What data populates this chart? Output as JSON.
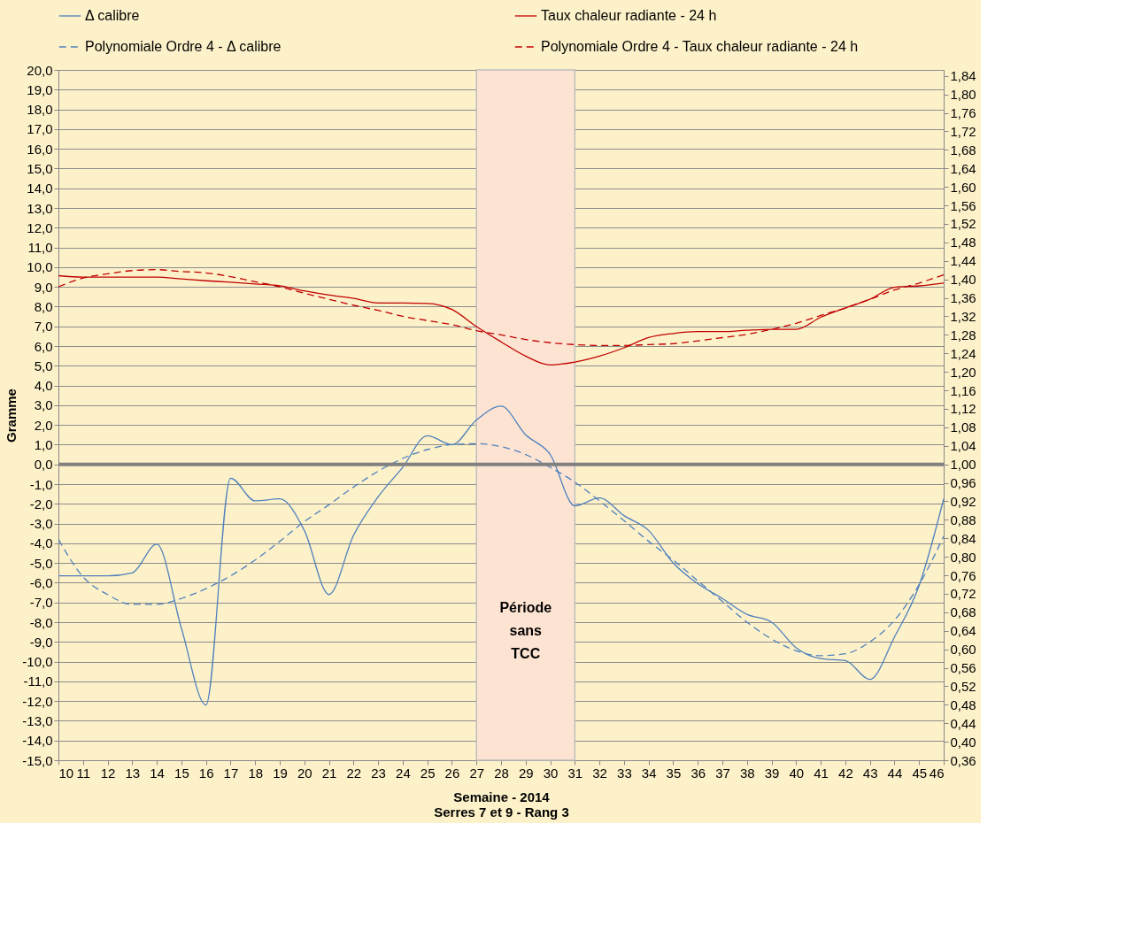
{
  "chart_data": {
    "type": "line",
    "xlabel": "Semaine - 2014",
    "ylabel": "Gramme",
    "annotations": [
      "Serres 7 et 9 - Rang 3"
    ],
    "x": [
      10,
      11,
      12,
      13,
      14,
      15,
      16,
      17,
      18,
      19,
      20,
      21,
      22,
      23,
      24,
      25,
      26,
      27,
      28,
      29,
      30,
      31,
      32,
      33,
      34,
      35,
      36,
      37,
      38,
      39,
      40,
      41,
      42,
      43,
      44,
      45,
      46
    ],
    "xlim": [
      10,
      46
    ],
    "xticks": [
      10,
      11,
      12,
      13,
      14,
      15,
      16,
      17,
      18,
      19,
      20,
      21,
      22,
      23,
      24,
      25,
      26,
      27,
      28,
      29,
      30,
      31,
      32,
      33,
      34,
      35,
      36,
      37,
      38,
      39,
      40,
      41,
      42,
      43,
      44,
      45,
      46
    ],
    "ylim": [
      -15,
      20
    ],
    "yticks": [
      {
        "value": -15,
        "label": "-15,0"
      },
      {
        "value": -14,
        "label": "-14,0"
      },
      {
        "value": -13,
        "label": "-13,0"
      },
      {
        "value": -12,
        "label": "-12,0"
      },
      {
        "value": -11,
        "label": "-11,0"
      },
      {
        "value": -10,
        "label": "-10,0"
      },
      {
        "value": -9,
        "label": "-9,0"
      },
      {
        "value": -8,
        "label": "-8,0"
      },
      {
        "value": -7,
        "label": "-7,0"
      },
      {
        "value": -6,
        "label": "-6,0"
      },
      {
        "value": -5,
        "label": "-5,0"
      },
      {
        "value": -4,
        "label": "-4,0"
      },
      {
        "value": -3,
        "label": "-3,0"
      },
      {
        "value": -2,
        "label": "-2,0"
      },
      {
        "value": -1,
        "label": "-1,0"
      },
      {
        "value": 0,
        "label": "0,0"
      },
      {
        "value": 1,
        "label": "1,0"
      },
      {
        "value": 2,
        "label": "2,0"
      },
      {
        "value": 3,
        "label": "3,0"
      },
      {
        "value": 4,
        "label": "4,0"
      },
      {
        "value": 5,
        "label": "5,0"
      },
      {
        "value": 6,
        "label": "6,0"
      },
      {
        "value": 7,
        "label": "7,0"
      },
      {
        "value": 8,
        "label": "8,0"
      },
      {
        "value": 9,
        "label": "9,0"
      },
      {
        "value": 10,
        "label": "10,0"
      },
      {
        "value": 11,
        "label": "11,0"
      },
      {
        "value": 12,
        "label": "12,0"
      },
      {
        "value": 13,
        "label": "13,0"
      },
      {
        "value": 14,
        "label": "14,0"
      },
      {
        "value": 15,
        "label": "15,0"
      },
      {
        "value": 16,
        "label": "16,0"
      },
      {
        "value": 17,
        "label": "17,0"
      },
      {
        "value": 18,
        "label": "18,0"
      },
      {
        "value": 19,
        "label": "19,0"
      },
      {
        "value": 20,
        "label": "20,0"
      }
    ],
    "y2lim": [
      0.36,
      1.853
    ],
    "y2ticks": [
      {
        "value": 0.36,
        "label": "0,36"
      },
      {
        "value": 0.4,
        "label": "0,40"
      },
      {
        "value": 0.44,
        "label": "0,44"
      },
      {
        "value": 0.48,
        "label": "0,48"
      },
      {
        "value": 0.52,
        "label": "0,52"
      },
      {
        "value": 0.56,
        "label": "0,56"
      },
      {
        "value": 0.6,
        "label": "0,60"
      },
      {
        "value": 0.64,
        "label": "0,64"
      },
      {
        "value": 0.68,
        "label": "0,68"
      },
      {
        "value": 0.72,
        "label": "0,72"
      },
      {
        "value": 0.76,
        "label": "0,76"
      },
      {
        "value": 0.8,
        "label": "0,80"
      },
      {
        "value": 0.84,
        "label": "0,84"
      },
      {
        "value": 0.88,
        "label": "0,88"
      },
      {
        "value": 0.92,
        "label": "0,92"
      },
      {
        "value": 0.96,
        "label": "0,96"
      },
      {
        "value": 1,
        "label": "1,00"
      },
      {
        "value": 1.04,
        "label": "1,04"
      },
      {
        "value": 1.08,
        "label": "1,08"
      },
      {
        "value": 1.12,
        "label": "1,12"
      },
      {
        "value": 1.16,
        "label": "1,16"
      },
      {
        "value": 1.2,
        "label": "1,20"
      },
      {
        "value": 1.24,
        "label": "1,24"
      },
      {
        "value": 1.28,
        "label": "1,28"
      },
      {
        "value": 1.32,
        "label": "1,32"
      },
      {
        "value": 1.36,
        "label": "1,36"
      },
      {
        "value": 1.4,
        "label": "1,40"
      },
      {
        "value": 1.44,
        "label": "1,44"
      },
      {
        "value": 1.48,
        "label": "1,48"
      },
      {
        "value": 1.52,
        "label": "1,52"
      },
      {
        "value": 1.56,
        "label": "1,56"
      },
      {
        "value": 1.6,
        "label": "1,60"
      },
      {
        "value": 1.64,
        "label": "1,64"
      },
      {
        "value": 1.68,
        "label": "1,68"
      },
      {
        "value": 1.72,
        "label": "1,72"
      },
      {
        "value": 1.76,
        "label": "1,76"
      },
      {
        "value": 1.8,
        "label": "1,80"
      },
      {
        "value": 1.84,
        "label": "1,84"
      }
    ],
    "grid": "y",
    "legend": "top",
    "marker": "none",
    "ref_lines": [
      {
        "axis": "y",
        "value": 0,
        "color": "#808080"
      }
    ],
    "bands": [
      {
        "axis": "x",
        "from": 27,
        "to": 31,
        "label": "Période sans TCC",
        "color": "#fde4d2"
      }
    ],
    "series": [
      {
        "name": "Δ calibre",
        "color": "#4f81bd",
        "line_style": "solid",
        "values": [
          -5.65,
          -5.65,
          -5.65,
          -5.5,
          -4.05,
          -8.3,
          -12.2,
          -0.7,
          -1.85,
          -1.75,
          -3.35,
          -6.6,
          -3.6,
          -1.65,
          -0.15,
          1.45,
          1.0,
          2.25,
          2.95,
          1.5,
          0.5,
          -2.1,
          -1.7,
          -2.6,
          -3.35,
          -5.0,
          -6.05,
          -6.8,
          -7.6,
          -8.0,
          -9.3,
          -9.85,
          -9.95,
          -10.9,
          -8.75,
          -6.15,
          -1.75
        ]
      },
      {
        "name": "Taux chaleur radiante - 24 h",
        "color": "#c00000",
        "line_style": "solid",
        "axis": "y2",
        "values": [
          1.408,
          1.405,
          1.405,
          1.405,
          1.405,
          1.401,
          1.397,
          1.394,
          1.39,
          1.386,
          1.375,
          1.366,
          1.359,
          1.349,
          1.349,
          1.348,
          1.335,
          1.298,
          1.265,
          1.234,
          1.215,
          1.221,
          1.234,
          1.252,
          1.274,
          1.283,
          1.287,
          1.287,
          1.29,
          1.292,
          1.292,
          1.318,
          1.338,
          1.357,
          1.383,
          1.386,
          1.392
        ]
      },
      {
        "name": "Polynomiale Ordre 4 - Δ calibre",
        "color": "#4f81bd",
        "line_style": "dashed",
        "values": [
          -3.8,
          -5.7,
          -6.6,
          -7.1,
          -7.1,
          -6.8,
          -6.3,
          -5.65,
          -4.85,
          -3.9,
          -2.9,
          -2.05,
          -1.15,
          -0.35,
          0.3,
          0.75,
          1.0,
          1.05,
          0.9,
          0.5,
          -0.15,
          -0.9,
          -1.85,
          -2.85,
          -3.9,
          -4.85,
          -5.9,
          -6.95,
          -8.0,
          -8.85,
          -9.45,
          -9.7,
          -9.6,
          -9.0,
          -7.9,
          -6.1,
          -3.65
        ]
      },
      {
        "name": "Polynomiale Ordre 4 - Taux chaleur radiante - 24 h",
        "color": "#c00000",
        "line_style": "dashed",
        "axis": "y2",
        "values": [
          1.384,
          1.403,
          1.412,
          1.419,
          1.421,
          1.417,
          1.414,
          1.406,
          1.395,
          1.384,
          1.37,
          1.357,
          1.344,
          1.333,
          1.32,
          1.311,
          1.302,
          1.289,
          1.28,
          1.27,
          1.263,
          1.259,
          1.257,
          1.257,
          1.259,
          1.261,
          1.267,
          1.274,
          1.281,
          1.292,
          1.305,
          1.322,
          1.338,
          1.357,
          1.377,
          1.392,
          1.41
        ]
      }
    ]
  }
}
